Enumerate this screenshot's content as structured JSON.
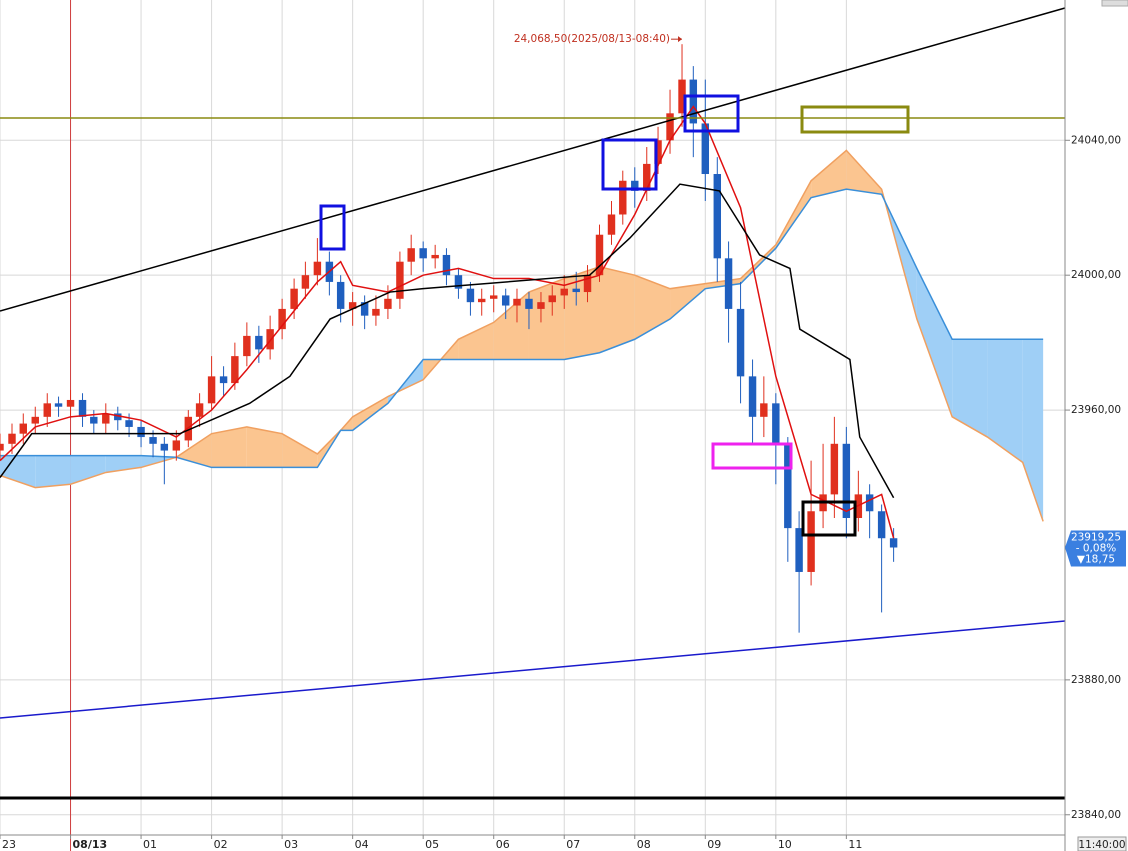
{
  "chart_data": {
    "type": "candlestick",
    "x": [
      -1,
      -0.83,
      -0.67,
      -0.5,
      -0.33,
      -0.17,
      0,
      0.17,
      0.33,
      0.5,
      0.67,
      0.83,
      1,
      1.17,
      1.33,
      1.5,
      1.67,
      1.83,
      2,
      2.17,
      2.33,
      2.5,
      2.67,
      2.83,
      3,
      3.17,
      3.33,
      3.5,
      3.67,
      3.83,
      4,
      4.17,
      4.33,
      4.5,
      4.67,
      4.83,
      5,
      5.17,
      5.33,
      5.5,
      5.67,
      5.83,
      6,
      6.17,
      6.33,
      6.5,
      6.67,
      6.83,
      7,
      7.17,
      7.33,
      7.5,
      7.67,
      7.83,
      8,
      8.17,
      8.33,
      8.5,
      8.67,
      8.83,
      9,
      9.17,
      9.33,
      9.5,
      9.67,
      9.83,
      10,
      10.17,
      10.33,
      10.5,
      10.67,
      10.83,
      11,
      11.17,
      11.33,
      11.5,
      11.67
    ],
    "open": [
      23948,
      23950,
      23953,
      23956,
      23958,
      23962,
      23961,
      23963,
      23958,
      23956,
      23959,
      23957,
      23955,
      23952,
      23950,
      23948,
      23951,
      23958,
      23962,
      23970,
      23968,
      23976,
      23982,
      23978,
      23984,
      23990,
      23996,
      24000,
      24004,
      23998,
      23990,
      23992,
      23988,
      23990,
      23993,
      24004,
      24008,
      24005,
      24006,
      24000,
      23996,
      23992,
      23993,
      23994,
      23991,
      23993,
      23990,
      23992,
      23994,
      23996,
      23995,
      24000,
      24012,
      24018,
      24028,
      24025,
      24033,
      24040,
      24048,
      24058,
      24045,
      24030,
      24005,
      23990,
      23970,
      23958,
      23962,
      23950,
      23925,
      23912,
      23930,
      23935,
      23950,
      23928,
      23935,
      23930,
      23922
    ],
    "high": [
      23953,
      23956,
      23959,
      23961,
      23965,
      23964,
      23966,
      23965,
      23960,
      23962,
      23961,
      23959,
      23957,
      23954,
      23952,
      23954,
      23960,
      23965,
      23976,
      23973,
      23980,
      23986,
      23985,
      23988,
      23993,
      23999,
      24004,
      24011,
      24007,
      24000,
      23995,
      23994,
      23994,
      23997,
      24007,
      24012,
      24010,
      24009,
      24008,
      24002,
      23998,
      23996,
      23997,
      23996,
      23996,
      23995,
      23995,
      23997,
      24000,
      24001,
      24003,
      24015,
      24022,
      24031,
      24032,
      24038,
      24044,
      24055,
      24068.5,
      24062,
      24058,
      24035,
      24010,
      23998,
      23975,
      23970,
      23965,
      23952,
      23930,
      23945,
      23950,
      23958,
      23955,
      23942,
      23938,
      23932,
      23925
    ],
    "low": [
      23945,
      23947,
      23950,
      23953,
      23955,
      23958,
      23958,
      23955,
      23953,
      23953,
      23954,
      23952,
      23949,
      23946,
      23938,
      23945,
      23949,
      23955,
      23960,
      23964,
      23966,
      23973,
      23974,
      23975,
      23981,
      23987,
      23993,
      23997,
      23994,
      23986,
      23985,
      23984,
      23985,
      23987,
      23990,
      24000,
      24001,
      24002,
      23997,
      23993,
      23988,
      23988,
      23989,
      23987,
      23986,
      23984,
      23986,
      23988,
      23990,
      23991,
      23992,
      23998,
      24009,
      24015,
      24020,
      24022,
      24030,
      24036,
      24044,
      24035,
      24022,
      23998,
      23980,
      23962,
      23950,
      23952,
      23938,
      23915,
      23894,
      23908,
      23925,
      23928,
      23922,
      23924,
      23922,
      23900,
      23915
    ],
    "close": [
      23950,
      23953,
      23956,
      23958,
      23962,
      23961,
      23963,
      23958,
      23956,
      23959,
      23957,
      23955,
      23952,
      23950,
      23948,
      23951,
      23958,
      23962,
      23970,
      23968,
      23976,
      23982,
      23978,
      23984,
      23990,
      23996,
      24000,
      24004,
      23998,
      23990,
      23992,
      23988,
      23990,
      23993,
      24004,
      24008,
      24005,
      24006,
      24000,
      23996,
      23992,
      23993,
      23994,
      23991,
      23993,
      23990,
      23992,
      23994,
      23996,
      23995,
      24000,
      24012,
      24018,
      24028,
      24025,
      24033,
      24040,
      24048,
      24058,
      24045,
      24030,
      24005,
      23990,
      23970,
      23958,
      23962,
      23950,
      23925,
      23912,
      23930,
      23935,
      23950,
      23928,
      23935,
      23930,
      23922,
      23919.25
    ],
    "up_color": "#e0301e",
    "down_color": "#1f5fbf",
    "lines": [
      {
        "color": "#e01010",
        "x": [
          -1,
          -0.5,
          0,
          0.5,
          1,
          1.5,
          2,
          2.5,
          3,
          3.5,
          3.83,
          4,
          4.5,
          5,
          5.5,
          6,
          6.5,
          7,
          7.5,
          8,
          8.5,
          8.83,
          9,
          9.5,
          10,
          10.5,
          11,
          11.5,
          11.67
        ],
        "values": [
          23945,
          23955,
          23958,
          23959,
          23957,
          23952,
          23960,
          23972,
          23985,
          23998,
          24004,
          23997,
          23995,
          24000,
          24002,
          23999,
          23999,
          23997,
          24000,
          24018,
          24040,
          24050,
          24045,
          24020,
          23970,
          23935,
          23930,
          23935,
          23922
        ]
      },
      {
        "color": "#000000",
        "x": [
          -1,
          -0.55,
          1.55,
          2.54,
          3.11,
          3.68,
          4.53,
          5,
          7.36,
          7.93,
          8.64,
          9.2,
          9.77,
          10.2,
          10.34,
          11.05,
          11.19,
          11.67
        ],
        "values": [
          23940,
          23953,
          23953,
          23962,
          23970,
          23987,
          23995,
          23996,
          24000,
          24011,
          24027,
          24025,
          24006,
          24002,
          23984,
          23975,
          23952,
          23934
        ]
      }
    ],
    "cloud": {
      "x": [
        -1,
        -0.5,
        0,
        0.5,
        1,
        1.5,
        2,
        2.5,
        3,
        3.5,
        3.83,
        4,
        4.5,
        5,
        5.5,
        6,
        6.5,
        7,
        7.5,
        8,
        8.5,
        9,
        9.5,
        10,
        10.5,
        11,
        11.5,
        12,
        12.5,
        13,
        13.5,
        13.79
      ],
      "span_a": [
        23940.6,
        23937,
        23938,
        23941.5,
        23943,
        23946,
        23953,
        23955,
        23953,
        23947,
        23954,
        23958,
        23964,
        23969,
        23981,
        23986,
        23995,
        23999,
        24002.5,
        24000,
        23996,
        23997.5,
        23999,
        24009,
        24028,
        24037,
        24025.5,
        23987,
        23958,
        23952,
        23944.5,
        23927
      ],
      "span_b": [
        23946.5,
        23946.5,
        23946.5,
        23946.5,
        23946.5,
        23946,
        23943,
        23943,
        23943,
        23943,
        23954,
        23954,
        23962,
        23975,
        23975,
        23975,
        23975,
        23975,
        23977,
        23981,
        23987,
        23996,
        23997.5,
        24008,
        24023,
        24025.5,
        24024,
        24002,
        23981,
        23981,
        23981,
        23981
      ],
      "span_a_color": "#f0a060",
      "span_b_color": "#3a8fd9",
      "a_fill": "#fbc590",
      "b_fill": "#9fcff6"
    },
    "xlim": [
      -1,
      14.1
    ],
    "ylim": [
      23834,
      24081.6
    ],
    "xticks": [
      {
        "value": -1,
        "label": "23"
      },
      {
        "value": 0,
        "label": "08/13"
      },
      {
        "value": 1,
        "label": "01"
      },
      {
        "value": 2,
        "label": "02"
      },
      {
        "value": 3,
        "label": "03"
      },
      {
        "value": 4,
        "label": "04"
      },
      {
        "value": 5,
        "label": "05"
      },
      {
        "value": 6,
        "label": "06"
      },
      {
        "value": 7,
        "label": "07"
      },
      {
        "value": 8,
        "label": "08"
      },
      {
        "value": 9,
        "label": "09"
      },
      {
        "value": 10,
        "label": "10"
      },
      {
        "value": 11,
        "label": "11"
      }
    ],
    "yticks": [
      {
        "value": 24040,
        "label": "24040,00"
      },
      {
        "value": 24000,
        "label": "24000,00"
      },
      {
        "value": 23960,
        "label": "23960,00"
      },
      {
        "value": 23880,
        "label": "23880,00"
      },
      {
        "value": 23840,
        "label": "23840,00"
      }
    ],
    "grid": true,
    "session_line": {
      "x": 0,
      "color": "#d04040"
    },
    "high_label": "24,068,50(2025/08/13-08:40)",
    "last_price": {
      "value": 23919.25,
      "label": "23919,25"
    },
    "change_percent_label": "- 0,08%",
    "change_label": "▼18,75",
    "cursor_time_label": "11:40:00"
  }
}
